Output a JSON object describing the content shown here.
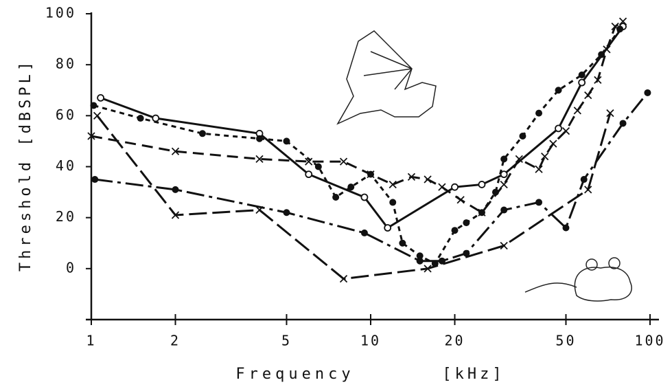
{
  "chart_data": {
    "type": "line",
    "xlabel": "Frequency",
    "xlabel_unit": "[kHz]",
    "ylabel": "Threshold [dBSPL]",
    "xscale": "log",
    "xlim": [
      1,
      100
    ],
    "xticks": [
      1,
      2,
      5,
      10,
      20,
      50,
      100
    ],
    "ylim": [
      -20,
      100
    ],
    "yticks": [
      0,
      20,
      40,
      60,
      80,
      100
    ],
    "series": [
      {
        "color": "#111111",
        "dash": "solid",
        "marker": "open-circle",
        "x": [
          1.08,
          1.7,
          4,
          6,
          9.5,
          11.5,
          20,
          25,
          30,
          47,
          57,
          80
        ],
        "values": [
          67,
          59,
          53,
          37,
          28,
          16,
          32,
          33,
          37,
          55,
          73,
          95
        ]
      },
      {
        "color": "#111111",
        "dash": "short",
        "marker": "dot",
        "x": [
          1.02,
          1.5,
          2.5,
          4,
          5,
          6.5,
          7.5,
          8.5,
          10,
          12,
          13,
          15,
          17,
          20,
          22,
          25,
          28,
          30,
          35,
          40,
          47,
          57,
          67,
          78
        ],
        "values": [
          64,
          59,
          53,
          51,
          50,
          40,
          28,
          32,
          37,
          26,
          10,
          5,
          2,
          15,
          18,
          22,
          30,
          43,
          52,
          61,
          70,
          76,
          84,
          94
        ]
      },
      {
        "color": "#111111",
        "dash": "medium",
        "marker": "x",
        "x": [
          1,
          2,
          4,
          6,
          8,
          10,
          12,
          14,
          16,
          18,
          21,
          25,
          30,
          34,
          40,
          42,
          45,
          50,
          55,
          60,
          65,
          70,
          75,
          80
        ],
        "values": [
          52,
          46,
          43,
          42,
          42,
          37,
          33,
          36,
          35,
          32,
          27,
          22,
          33,
          43,
          39,
          44,
          49,
          54,
          62,
          68,
          74,
          86,
          95,
          97
        ]
      },
      {
        "color": "#111111",
        "dash": "long",
        "marker": "x",
        "x": [
          1.05,
          2,
          4,
          8,
          16,
          30,
          60,
          72
        ],
        "values": [
          60,
          21,
          23,
          -4,
          0,
          9,
          31,
          61
        ]
      },
      {
        "color": "#111111",
        "dash": "dashdot",
        "marker": "dot",
        "x": [
          1.03,
          2,
          5,
          9.5,
          15,
          18,
          22,
          30,
          40,
          50,
          58,
          80,
          98
        ],
        "values": [
          35,
          31,
          22,
          14,
          3,
          3,
          6,
          23,
          26,
          16,
          35,
          57,
          69
        ]
      }
    ]
  }
}
